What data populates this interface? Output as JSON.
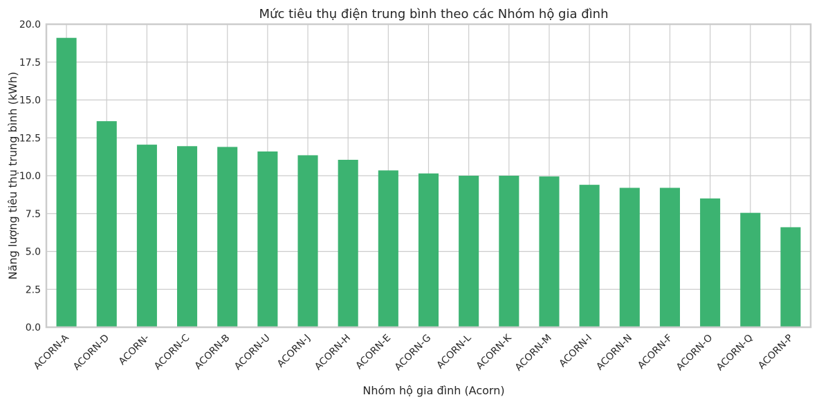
{
  "chart_data": {
    "type": "bar",
    "title": "Mức tiêu thụ điện trung bình theo các Nhóm hộ gia đình",
    "xlabel": "Nhóm hộ gia đình (Acorn)",
    "ylabel": "Năng lượng tiêu thụ trung bình (kWh)",
    "categories": [
      "ACORN-A",
      "ACORN-D",
      "ACORN-",
      "ACORN-C",
      "ACORN-B",
      "ACORN-U",
      "ACORN-J",
      "ACORN-H",
      "ACORN-E",
      "ACORN-G",
      "ACORN-L",
      "ACORN-K",
      "ACORN-M",
      "ACORN-I",
      "ACORN-N",
      "ACORN-F",
      "ACORN-O",
      "ACORN-Q",
      "ACORN-P"
    ],
    "values": [
      19.1,
      13.6,
      12.05,
      11.95,
      11.9,
      11.6,
      11.35,
      11.05,
      10.35,
      10.15,
      10.0,
      10.0,
      9.95,
      9.4,
      9.2,
      9.2,
      8.5,
      7.55,
      6.6
    ],
    "ylim": [
      0,
      20
    ],
    "yticks": [
      "0.0",
      "2.5",
      "5.0",
      "7.5",
      "10.0",
      "12.5",
      "15.0",
      "17.5",
      "20.0"
    ],
    "grid": true,
    "bar_color": "#3cb371"
  }
}
